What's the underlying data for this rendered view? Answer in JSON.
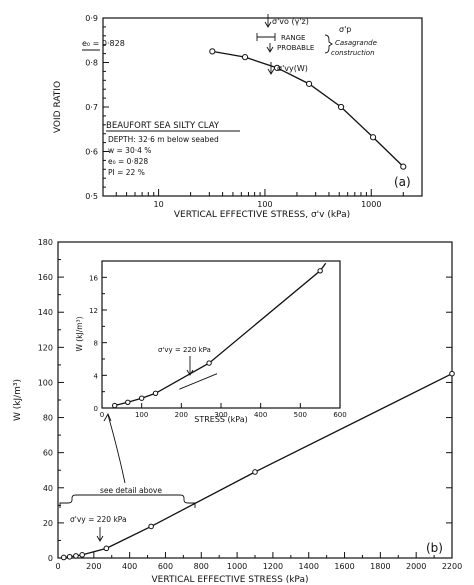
{
  "chart_data": [
    {
      "id": "a",
      "type": "scatter",
      "panel_label": "(a)",
      "xscale": "log",
      "xlim": [
        3,
        3000
      ],
      "ylim": [
        0.5,
        0.9
      ],
      "xlabel": "VERTICAL EFFECTIVE STRESS, σ'v (kPa)",
      "ylabel": "VOID RATIO",
      "xtick_values": [
        10,
        100,
        1000
      ],
      "xtick_labels": [
        "10",
        "100",
        "1000"
      ],
      "ytick_values": [
        0.5,
        0.6,
        0.7,
        0.8,
        0.9
      ],
      "ytick_labels": [
        "0·5",
        "0·6",
        "0·7",
        "0·8",
        "0·9"
      ],
      "x": [
        32,
        65,
        130,
        260,
        520,
        1040,
        2000
      ],
      "y": [
        0.825,
        0.812,
        0.788,
        0.752,
        0.7,
        0.632,
        0.566
      ],
      "e0_label": "e₀ = 0·828",
      "e0_value": 0.828,
      "legend": {
        "sigma_vo_label": "σ'vo (γ'z)",
        "range_label": "RANGE",
        "probable_label": "PROBABLE",
        "sigma_p_label": "σ'p",
        "casagrande_label": "Casagrande",
        "construction_label": "construction",
        "sigma_vy_label": "σ'vy(W)"
      },
      "annotation": {
        "title": "BEAUFORT SEA SILTY CLAY",
        "lines": [
          "DEPTH: 32·6 m  below seabed",
          "w     =  30·4 %",
          "e₀   =  0·828",
          "PI   =  22 %"
        ]
      }
    },
    {
      "id": "b",
      "type": "line",
      "panel_label": "(b)",
      "xlim": [
        0,
        2200
      ],
      "ylim": [
        0,
        180
      ],
      "xlabel": "VERTICAL EFFECTIVE STRESS (kPa)",
      "ylabel": "W (kJ/m³)",
      "xtick_values": [
        0,
        200,
        400,
        600,
        800,
        1000,
        1200,
        1400,
        1600,
        1800,
        2000,
        2200
      ],
      "ytick_values": [
        0,
        20,
        40,
        60,
        80,
        100,
        120,
        140,
        160,
        180
      ],
      "x": [
        32,
        65,
        100,
        135,
        270,
        520,
        1100,
        2200
      ],
      "y": [
        0.3,
        0.7,
        1.2,
        1.8,
        5.5,
        18,
        49,
        105
      ],
      "annotation_detail": "see detail above",
      "annotation_sigma": "σ'vy = 220 kPa",
      "inset": {
        "xlim": [
          0,
          600
        ],
        "ylim": [
          0,
          18
        ],
        "xlabel": "STRESS (kPa)",
        "ylabel": "W (kJ/m³)",
        "xtick_values": [
          0,
          100,
          200,
          300,
          400,
          500,
          600
        ],
        "ytick_values": [
          0,
          4,
          8,
          12,
          16
        ],
        "x": [
          32,
          65,
          100,
          135,
          270,
          550
        ],
        "y": [
          0.3,
          0.7,
          1.2,
          1.8,
          5.5,
          16.8
        ],
        "annotation_sigma": "σ'vy = 220 kPa"
      }
    }
  ]
}
